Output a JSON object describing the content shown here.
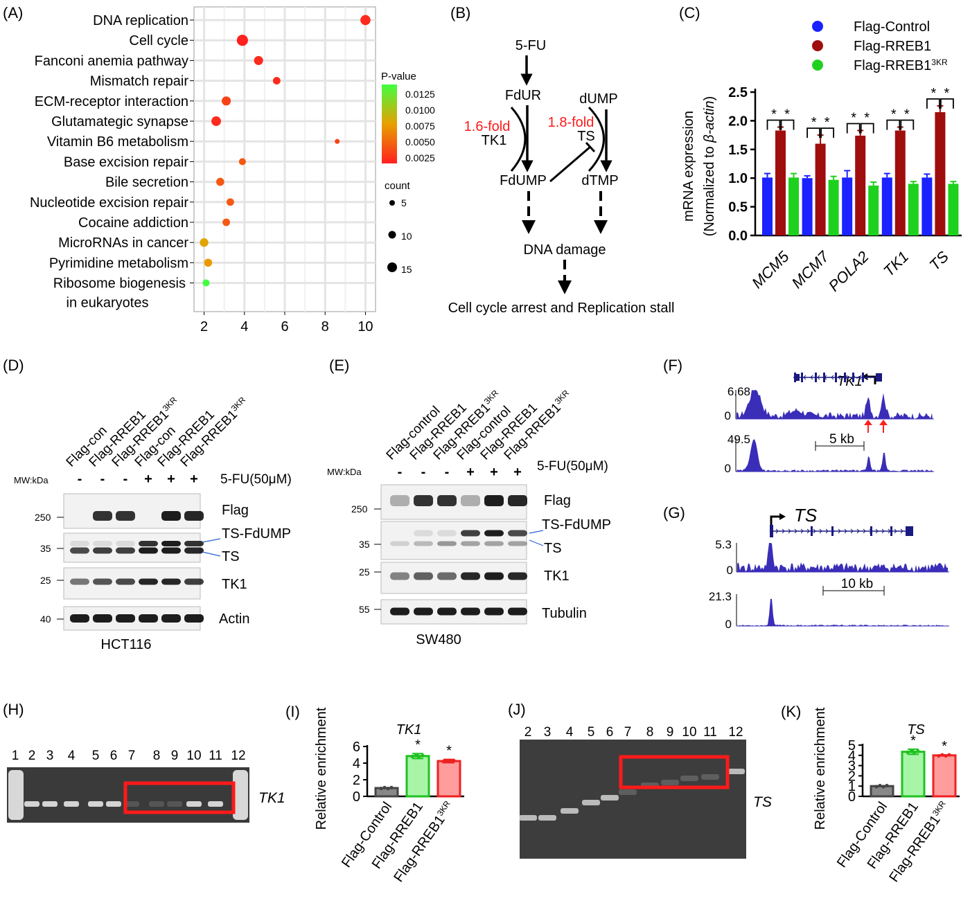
{
  "panels": {
    "A": "(A)",
    "B": "(B)",
    "C": "(C)",
    "D": "(D)",
    "E": "(E)",
    "F": "(F)",
    "G": "(G)",
    "H": "(H)",
    "I": "(I)",
    "J": "(J)",
    "K": "(K)"
  },
  "chart_data": [
    {
      "id": "A",
      "type": "scatter",
      "categories": [
        "DNA replication",
        "Cell cycle",
        "Fanconi anemia pathway",
        "Mismatch repair",
        "ECM-receptor interaction",
        "Glutamategic synapse",
        "Vitamin B6 metabolism",
        "Base excision repair",
        "Bile secretion",
        "Nucleotide excision repair",
        "Cocaine addiction",
        "MicroRNAs in cancer",
        "Pyrimidine metabolism",
        "Ribosome biogenesis in eukaryotes"
      ],
      "x": [
        10,
        3.9,
        4.7,
        5.6,
        3.1,
        2.6,
        8.6,
        3.9,
        2.8,
        3.3,
        3.1,
        2.0,
        2.2,
        2.1
      ],
      "counts": [
        14,
        16,
        12,
        9,
        12,
        13,
        4,
        8,
        10,
        9,
        9,
        11,
        10,
        8
      ],
      "pvalues": [
        0.002,
        0.0015,
        0.002,
        0.002,
        0.003,
        0.002,
        0.003,
        0.004,
        0.004,
        0.004,
        0.004,
        0.0075,
        0.007,
        0.013
      ],
      "xticks": [
        2,
        4,
        6,
        8,
        10
      ],
      "xlim": [
        1.5,
        10.5
      ],
      "legend_color_title": "P-value",
      "legend_color_ticks": [
        "0.0125",
        "0.0100",
        "0.0075",
        "0.0050",
        "0.0025"
      ],
      "legend_size_title": "count",
      "legend_size_ticks": [
        "5",
        "10",
        "15"
      ],
      "colors": {
        "low": "#ff2020",
        "mid": "#e8a000",
        "high": "#40ff40"
      }
    },
    {
      "id": "C",
      "type": "bar",
      "categories": [
        "MCM5",
        "MCM7",
        "POLA2",
        "TK1",
        "TS"
      ],
      "series": [
        {
          "name": "Flag-Control",
          "values": [
            1.01,
            1.0,
            1.01,
            1.01,
            1.01
          ],
          "errors": [
            0.07,
            0.04,
            0.12,
            0.07,
            0.06
          ],
          "color": "#1a22ff"
        },
        {
          "name": "Flag-RREB1",
          "values": [
            1.83,
            1.6,
            1.74,
            1.83,
            2.15
          ],
          "errors": [
            0.06,
            0.15,
            0.09,
            0.06,
            0.11
          ],
          "color": "#a00d0d"
        },
        {
          "name": "Flag-RREB1",
          "sup": "3KR",
          "values": [
            1.01,
            0.97,
            0.87,
            0.9,
            0.9
          ],
          "errors": [
            0.07,
            0.06,
            0.06,
            0.04,
            0.04
          ],
          "color": "#1fd11f"
        }
      ],
      "ylabel": "mRNA expression",
      "ylabel2_pre": "(Normalized to ",
      "ylabel2_it": "β-actin",
      "ylabel2_post": ")",
      "yticks": [
        "0.0",
        "0.5",
        "1.0",
        "1.5",
        "2.0",
        "2.5"
      ],
      "ylim": [
        0,
        2.5
      ],
      "star": "*"
    },
    {
      "id": "I",
      "type": "bar",
      "title": "TK1",
      "categories": [
        "Flag-Control",
        "Flag-RREB1",
        "Flag-RREB1"
      ],
      "category_sup": [
        "",
        "",
        "3KR"
      ],
      "values": [
        1.0,
        4.85,
        4.25
      ],
      "errors": [
        0.0,
        0.3,
        0.2
      ],
      "colors": [
        "#888888",
        "#a8f5a8",
        "#ff9c9c"
      ],
      "edges": [
        "#444444",
        "#1fc21f",
        "#ee2222"
      ],
      "ylabel": "Relative enrichment",
      "yticks": [
        "0",
        "2",
        "4",
        "6"
      ],
      "ylim": [
        0,
        6
      ],
      "star": "*"
    },
    {
      "id": "K",
      "type": "bar",
      "title": "TS",
      "categories": [
        "Flag-Control",
        "Flag-RREB1",
        "Flag-RREB1"
      ],
      "category_sup": [
        "",
        "",
        "3KR"
      ],
      "values": [
        1.0,
        4.35,
        4.0
      ],
      "errors": [
        0.0,
        0.25,
        0.05
      ],
      "colors": [
        "#888888",
        "#a8f5a8",
        "#ff9c9c"
      ],
      "edges": [
        "#444444",
        "#1fc21f",
        "#ee2222"
      ],
      "ylabel": "Relative enrichment",
      "yticks": [
        "0",
        "1",
        "2",
        "3",
        "4",
        "5"
      ],
      "ylim": [
        0,
        5
      ],
      "star": "*"
    }
  ],
  "pathway": {
    "fu": "5-FU",
    "fdur": "FdUR",
    "dump": "dUMP",
    "fold1": "1.6-fold",
    "fold2": "1.8-fold",
    "tk1": "TK1",
    "ts": "TS",
    "fdump": "FdUMP",
    "dtmp": "dTMP",
    "dna": "DNA damage",
    "arrest": "Cell cycle arrest and Replication stall"
  },
  "blot_D": {
    "lanes": [
      "Flag-con",
      "Flag-RREB1",
      "Flag-RREB1",
      "Flag-con",
      "Flag-RREB1",
      "Flag-RREB1"
    ],
    "lane_sup": [
      "",
      "",
      "3KR",
      "",
      "",
      "3KR"
    ],
    "treat": [
      "-",
      "-",
      "-",
      "+",
      "+",
      "+"
    ],
    "treat_label": "5-FU(50μM)",
    "mw_label": "MW:kDa",
    "mw": [
      "250",
      "35",
      "25",
      "40"
    ],
    "bands": [
      "Flag",
      "TS-FdUMP",
      "TS",
      "TK1",
      "Actin"
    ],
    "cell": "HCT116"
  },
  "blot_E": {
    "lanes": [
      "Flag-control",
      "Flag-RREB1",
      "Flag-RREB1",
      "Flag-control",
      "Flag-RREB1",
      "Flag-RREB1"
    ],
    "lane_sup": [
      "",
      "",
      "3KR",
      "",
      "",
      "3KR"
    ],
    "treat": [
      "-",
      "-",
      "-",
      "+",
      "+",
      "+"
    ],
    "treat_label": "5-FU(50μM)",
    "mw_label": "MW:kDa",
    "mw": [
      "250",
      "35",
      "25",
      "55"
    ],
    "bands": [
      "Flag",
      "TS-FdUMP",
      "TS",
      "TK1",
      "Tubulin"
    ],
    "cell": "SW480"
  },
  "track_F": {
    "gene": "TK1",
    "y1": "6.68",
    "y1zero": "0",
    "y2": "49.5",
    "y2zero": "0",
    "scale": "5 kb"
  },
  "track_G": {
    "gene": "TS",
    "y1": "5.3",
    "y1zero": "0",
    "y2": "21.3",
    "y2zero": "0",
    "scale": "10 kb"
  },
  "gel_H": {
    "lanes": [
      "1",
      "2",
      "3",
      "4",
      "5",
      "6",
      "7",
      "8",
      "9",
      "10",
      "11",
      "12"
    ],
    "gene": "TK1"
  },
  "gel_J": {
    "lanes": [
      "2",
      "3",
      "4",
      "5",
      "6",
      "7",
      "8",
      "9",
      "10",
      "11",
      "12"
    ],
    "gene": "TS"
  }
}
